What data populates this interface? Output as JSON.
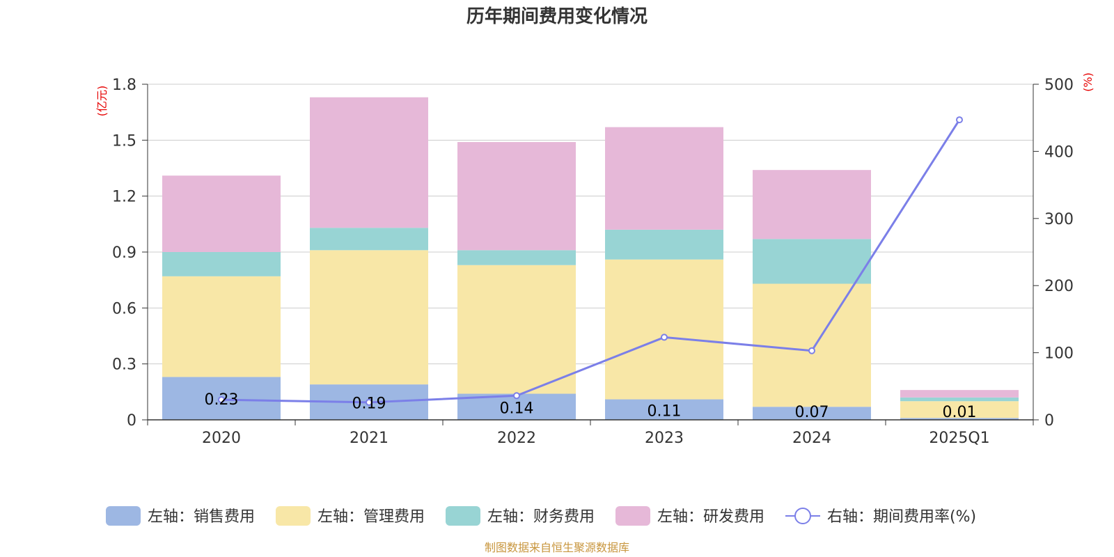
{
  "chart_data": {
    "type": "bar",
    "stacked": true,
    "title": "历年期间费用变化情况",
    "categories": [
      "2020",
      "2021",
      "2022",
      "2023",
      "2024",
      "2025Q1"
    ],
    "left_axis": {
      "unit": "(亿元)",
      "ylim": [
        0,
        1.8
      ],
      "ticks": [
        "0",
        "0.3",
        "0.6",
        "0.9",
        "1.2",
        "1.5",
        "1.8"
      ]
    },
    "right_axis": {
      "unit": "(%)",
      "ylim": [
        0,
        500
      ],
      "ticks": [
        "0",
        "100",
        "200",
        "300",
        "400",
        "500"
      ]
    },
    "series": [
      {
        "name": "左轴：销售费用",
        "axis": "left",
        "color": "#9db7e3",
        "values": [
          0.23,
          0.19,
          0.14,
          0.11,
          0.07,
          0.01
        ],
        "labels": [
          "0.23",
          "0.19",
          "0.14",
          "0.11",
          "0.07",
          "0.01"
        ]
      },
      {
        "name": "左轴：管理费用",
        "axis": "left",
        "color": "#f8e7a7",
        "values": [
          0.54,
          0.72,
          0.69,
          0.75,
          0.66,
          0.09
        ]
      },
      {
        "name": "左轴：财务费用",
        "axis": "left",
        "color": "#98d4d4",
        "values": [
          0.13,
          0.12,
          0.08,
          0.16,
          0.24,
          0.02
        ]
      },
      {
        "name": "左轴：研发费用",
        "axis": "left",
        "color": "#e6b8d8",
        "values": [
          0.41,
          0.7,
          0.58,
          0.55,
          0.37,
          0.04
        ]
      },
      {
        "name": "右轴：期间费用率(%)",
        "axis": "right",
        "type": "line",
        "color": "#7b7fe8",
        "values": [
          30,
          26,
          36,
          123,
          103,
          447
        ]
      }
    ]
  },
  "source": "制图数据来自恒生聚源数据库"
}
